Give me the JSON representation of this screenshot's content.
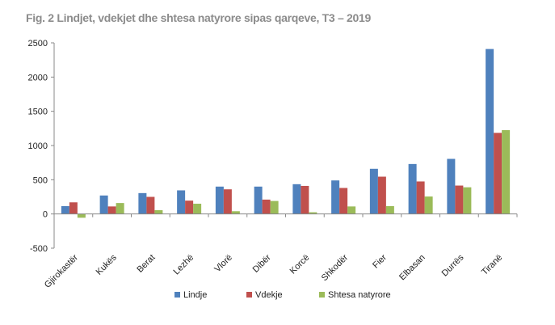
{
  "chart_data": {
    "type": "bar",
    "title": "Fig. 2  Lindjet, vdekjet dhe shtesa natyrore sipas qarqeve, T3 – 2019",
    "categories": [
      "Gjirokastër",
      "Kukës",
      "Berat",
      "Lezhë",
      "Vlorë",
      "Dibër",
      "Korcë",
      "Shkodër",
      "Fier",
      "Elbasan",
      "Durrës",
      "Tiranë"
    ],
    "series": [
      {
        "name": "Lindje",
        "color": "#4f81bd",
        "values": [
          115,
          270,
          305,
          345,
          400,
          400,
          435,
          490,
          660,
          730,
          805,
          2410
        ]
      },
      {
        "name": "Vdekje",
        "color": "#c0504d",
        "values": [
          170,
          110,
          250,
          195,
          360,
          210,
          410,
          380,
          545,
          475,
          415,
          1185
        ]
      },
      {
        "name": "Shtesa natyrore",
        "color": "#9bbb59",
        "values": [
          -55,
          160,
          55,
          150,
          40,
          190,
          25,
          110,
          115,
          255,
          390,
          1225
        ]
      }
    ],
    "yticks": [
      "-500",
      "0",
      "500",
      "1000",
      "1500",
      "2000",
      "2500"
    ],
    "ylim": [
      -500,
      2500
    ],
    "xlabel": "",
    "ylabel": "",
    "grid": false,
    "legend_position": "bottom"
  }
}
